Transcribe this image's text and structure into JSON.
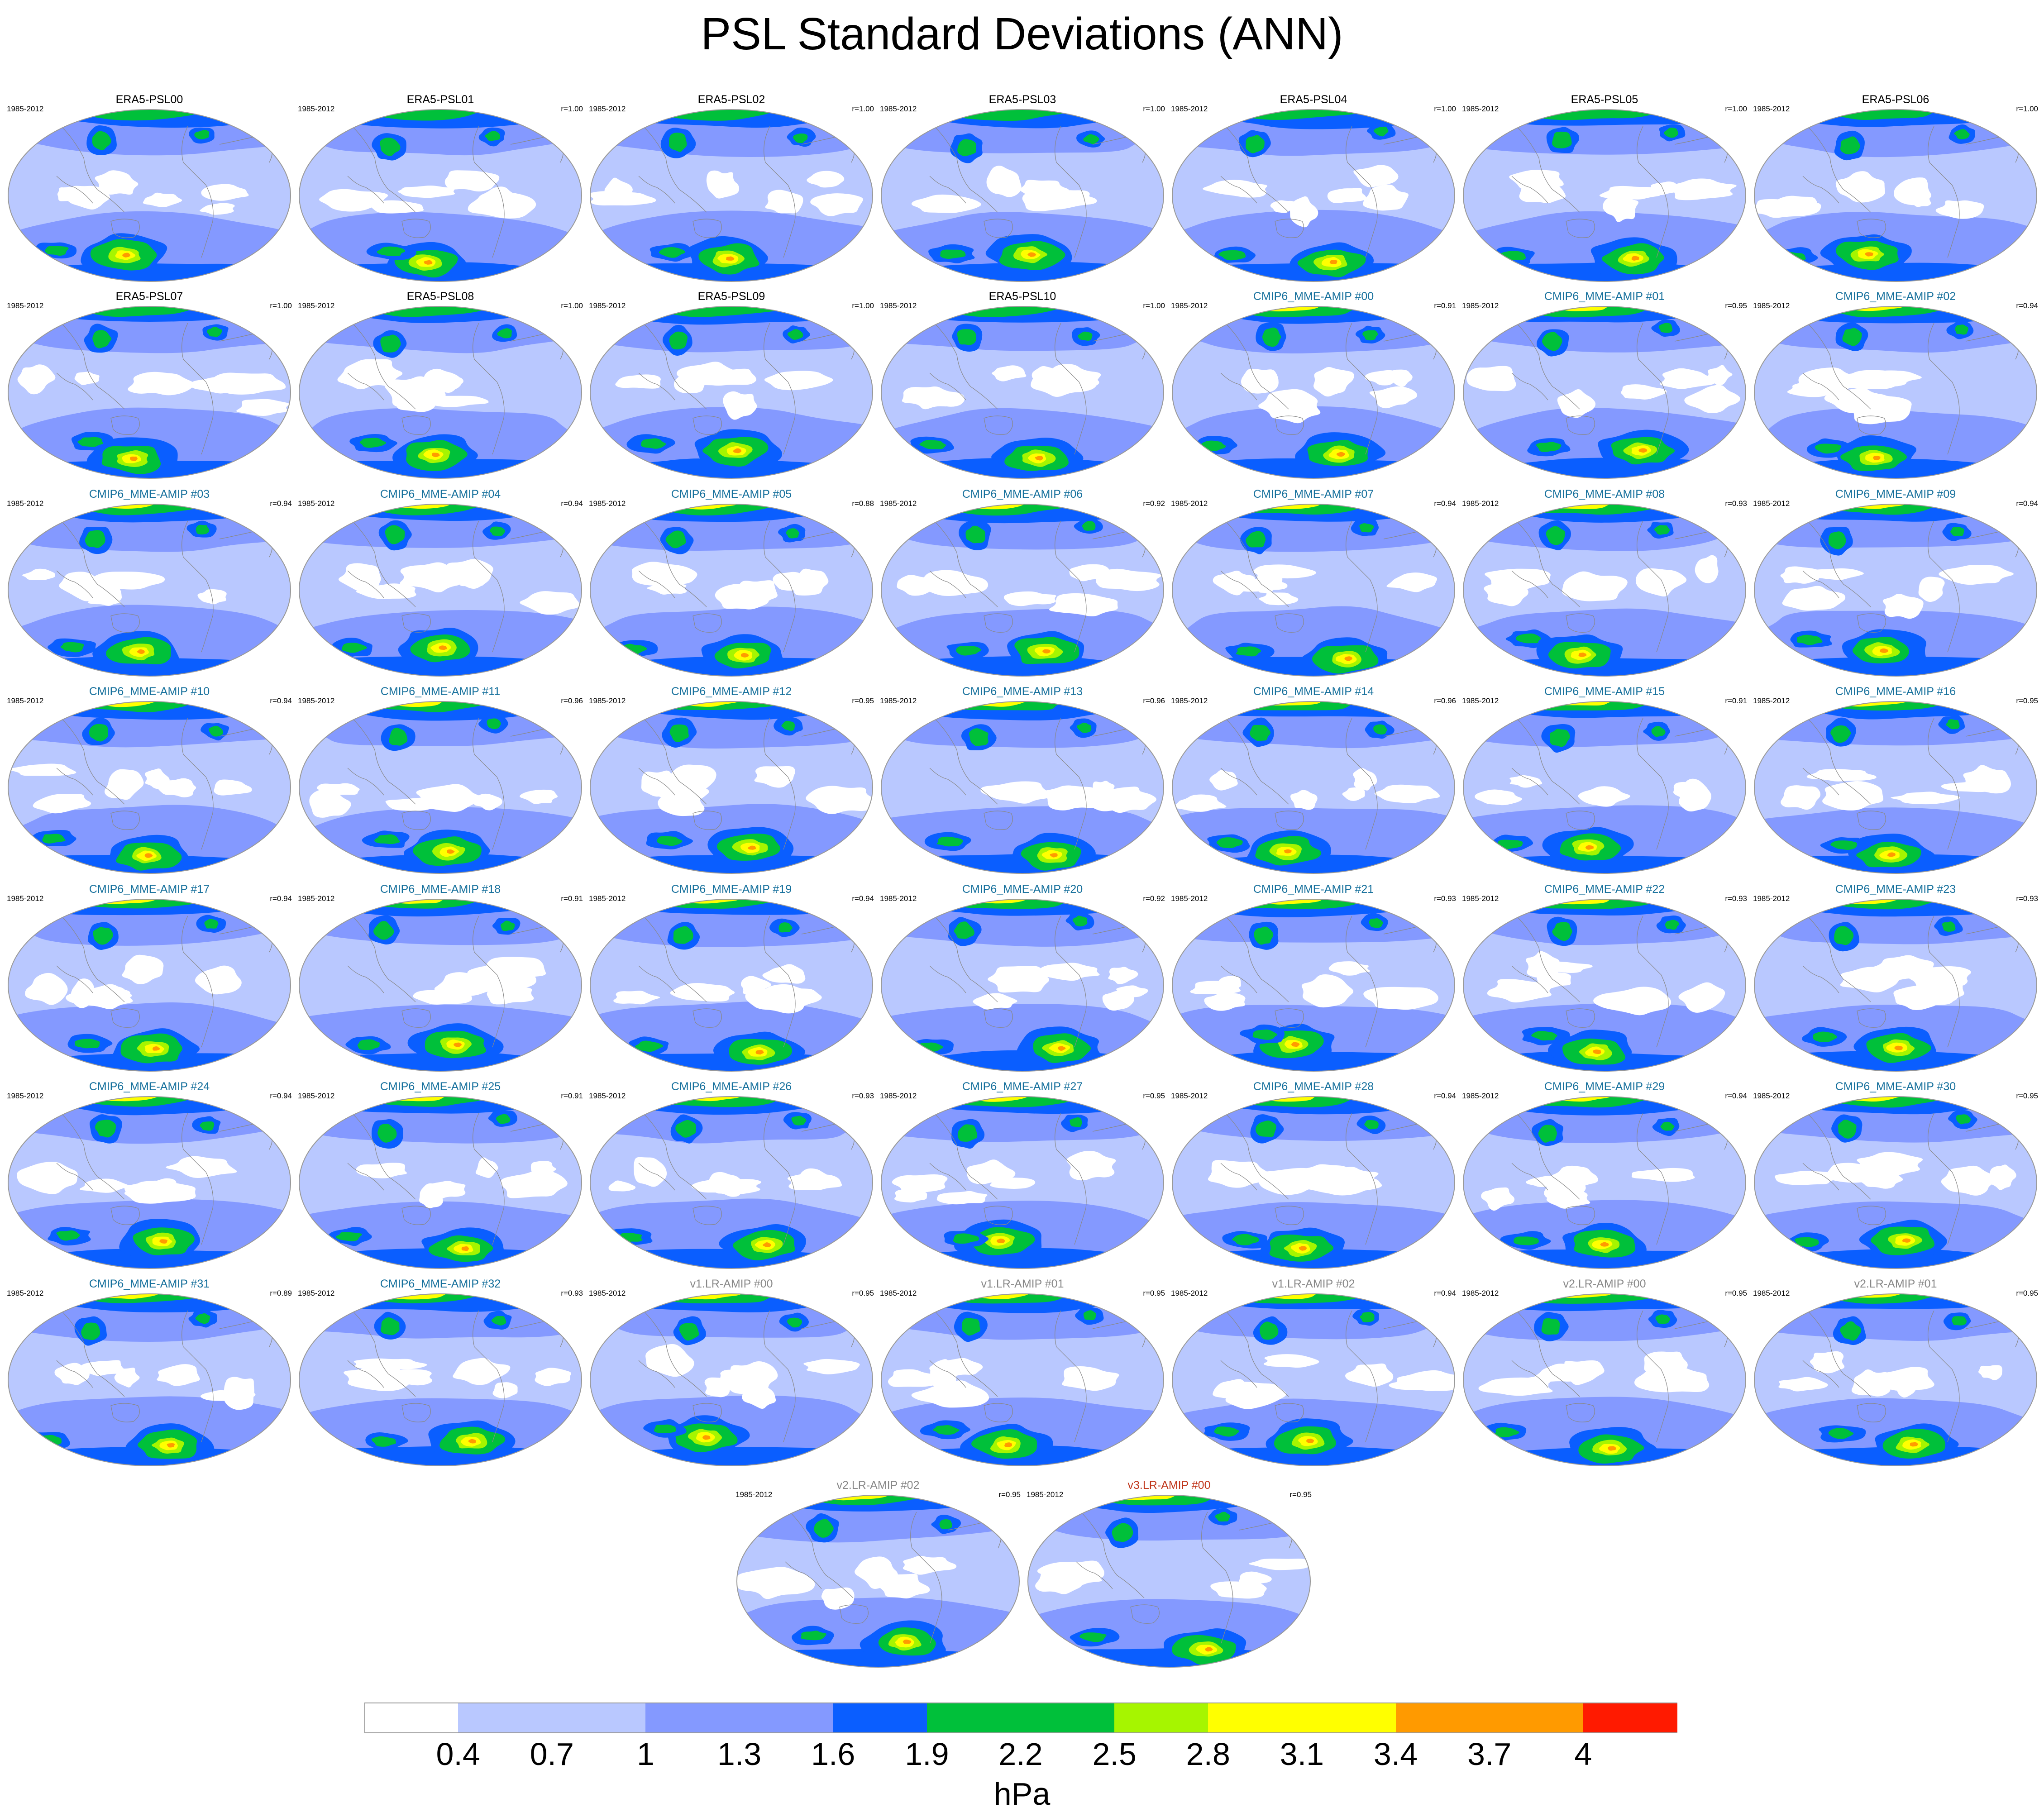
{
  "title": "PSL Standard Deviations (ANN)",
  "period": "1985-2012",
  "colors": {
    "levels": [
      "#ffffff",
      "#b9c8ff",
      "#b9c8ff",
      "#8499ff",
      "#8499ff",
      "#0a5eff",
      "#00c03a",
      "#00c03a",
      "#a6f500",
      "#ffff00",
      "#ffff00",
      "#ff9a00",
      "#ff1a00"
    ],
    "coast": "#888888",
    "outline": "#999999",
    "title_obs": "#000000",
    "title_cmip": "#16709c",
    "title_e3sm": "#888888",
    "title_v3": "#c0361b"
  },
  "panels": [
    {
      "name": "ERA5-PSL00",
      "r": "",
      "group": "obs"
    },
    {
      "name": "ERA5-PSL01",
      "r": "r=1.00",
      "group": "obs"
    },
    {
      "name": "ERA5-PSL02",
      "r": "r=1.00",
      "group": "obs"
    },
    {
      "name": "ERA5-PSL03",
      "r": "r=1.00",
      "group": "obs"
    },
    {
      "name": "ERA5-PSL04",
      "r": "r=1.00",
      "group": "obs"
    },
    {
      "name": "ERA5-PSL05",
      "r": "r=1.00",
      "group": "obs"
    },
    {
      "name": "ERA5-PSL06",
      "r": "r=1.00",
      "group": "obs"
    },
    {
      "name": "ERA5-PSL07",
      "r": "r=1.00",
      "group": "obs"
    },
    {
      "name": "ERA5-PSL08",
      "r": "r=1.00",
      "group": "obs"
    },
    {
      "name": "ERA5-PSL09",
      "r": "r=1.00",
      "group": "obs"
    },
    {
      "name": "ERA5-PSL10",
      "r": "r=1.00",
      "group": "obs"
    },
    {
      "name": "CMIP6_MME-AMIP  #00",
      "r": "r=0.91",
      "group": "cmip"
    },
    {
      "name": "CMIP6_MME-AMIP  #01",
      "r": "r=0.95",
      "group": "cmip"
    },
    {
      "name": "CMIP6_MME-AMIP  #02",
      "r": "r=0.94",
      "group": "cmip"
    },
    {
      "name": "CMIP6_MME-AMIP  #03",
      "r": "r=0.94",
      "group": "cmip"
    },
    {
      "name": "CMIP6_MME-AMIP  #04",
      "r": "r=0.94",
      "group": "cmip"
    },
    {
      "name": "CMIP6_MME-AMIP  #05",
      "r": "r=0.88",
      "group": "cmip"
    },
    {
      "name": "CMIP6_MME-AMIP  #06",
      "r": "r=0.92",
      "group": "cmip"
    },
    {
      "name": "CMIP6_MME-AMIP  #07",
      "r": "r=0.94",
      "group": "cmip"
    },
    {
      "name": "CMIP6_MME-AMIP  #08",
      "r": "r=0.93",
      "group": "cmip"
    },
    {
      "name": "CMIP6_MME-AMIP  #09",
      "r": "r=0.94",
      "group": "cmip"
    },
    {
      "name": "CMIP6_MME-AMIP  #10",
      "r": "r=0.94",
      "group": "cmip"
    },
    {
      "name": "CMIP6_MME-AMIP  #11",
      "r": "r=0.96",
      "group": "cmip"
    },
    {
      "name": "CMIP6_MME-AMIP  #12",
      "r": "r=0.95",
      "group": "cmip"
    },
    {
      "name": "CMIP6_MME-AMIP  #13",
      "r": "r=0.96",
      "group": "cmip"
    },
    {
      "name": "CMIP6_MME-AMIP  #14",
      "r": "r=0.96",
      "group": "cmip"
    },
    {
      "name": "CMIP6_MME-AMIP  #15",
      "r": "r=0.91",
      "group": "cmip"
    },
    {
      "name": "CMIP6_MME-AMIP  #16",
      "r": "r=0.95",
      "group": "cmip"
    },
    {
      "name": "CMIP6_MME-AMIP  #17",
      "r": "r=0.94",
      "group": "cmip"
    },
    {
      "name": "CMIP6_MME-AMIP  #18",
      "r": "r=0.91",
      "group": "cmip"
    },
    {
      "name": "CMIP6_MME-AMIP  #19",
      "r": "r=0.94",
      "group": "cmip"
    },
    {
      "name": "CMIP6_MME-AMIP  #20",
      "r": "r=0.92",
      "group": "cmip"
    },
    {
      "name": "CMIP6_MME-AMIP  #21",
      "r": "r=0.93",
      "group": "cmip"
    },
    {
      "name": "CMIP6_MME-AMIP  #22",
      "r": "r=0.93",
      "group": "cmip"
    },
    {
      "name": "CMIP6_MME-AMIP  #23",
      "r": "r=0.93",
      "group": "cmip"
    },
    {
      "name": "CMIP6_MME-AMIP  #24",
      "r": "r=0.94",
      "group": "cmip"
    },
    {
      "name": "CMIP6_MME-AMIP  #25",
      "r": "r=0.91",
      "group": "cmip"
    },
    {
      "name": "CMIP6_MME-AMIP  #26",
      "r": "r=0.93",
      "group": "cmip"
    },
    {
      "name": "CMIP6_MME-AMIP  #27",
      "r": "r=0.95",
      "group": "cmip"
    },
    {
      "name": "CMIP6_MME-AMIP  #28",
      "r": "r=0.94",
      "group": "cmip"
    },
    {
      "name": "CMIP6_MME-AMIP  #29",
      "r": "r=0.94",
      "group": "cmip"
    },
    {
      "name": "CMIP6_MME-AMIP  #30",
      "r": "r=0.95",
      "group": "cmip"
    },
    {
      "name": "CMIP6_MME-AMIP  #31",
      "r": "r=0.89",
      "group": "cmip"
    },
    {
      "name": "CMIP6_MME-AMIP  #32",
      "r": "r=0.93",
      "group": "cmip"
    },
    {
      "name": "v1.LR-AMIP  #00",
      "r": "r=0.95",
      "group": "e3sm"
    },
    {
      "name": "v1.LR-AMIP  #01",
      "r": "r=0.95",
      "group": "e3sm"
    },
    {
      "name": "v1.LR-AMIP  #02",
      "r": "r=0.94",
      "group": "e3sm"
    },
    {
      "name": "v2.LR-AMIP  #00",
      "r": "r=0.95",
      "group": "e3sm"
    },
    {
      "name": "v2.LR-AMIP  #01",
      "r": "r=0.95",
      "group": "e3sm"
    },
    {
      "name": "v2.LR-AMIP  #02",
      "r": "r=0.95",
      "group": "e3sm"
    },
    {
      "name": "v3.LR-AMIP  #00",
      "r": "r=0.95",
      "group": "v3"
    }
  ],
  "colorbar": {
    "labels": [
      "0.4",
      "0.7",
      "1",
      "1.3",
      "1.6",
      "1.9",
      "2.2",
      "2.5",
      "2.8",
      "3.1",
      "3.4",
      "3.7",
      "4"
    ],
    "units": "hPa"
  },
  "chart_data": {
    "type": "heatmap",
    "title": "PSL Standard Deviations (ANN)",
    "levels": [
      0.4,
      0.7,
      1,
      1.3,
      1.6,
      1.9,
      2.2,
      2.5,
      2.8,
      3.1,
      3.4,
      3.7,
      4
    ],
    "units": "hPa",
    "period": "1985-2012",
    "panel_count": 51,
    "r_values": [
      "",
      "1.00",
      "1.00",
      "1.00",
      "1.00",
      "1.00",
      "1.00",
      "1.00",
      "1.00",
      "1.00",
      "1.00",
      "0.91",
      "0.95",
      "0.94",
      "0.94",
      "0.94",
      "0.88",
      "0.92",
      "0.94",
      "0.93",
      "0.94",
      "0.94",
      "0.96",
      "0.95",
      "0.96",
      "0.96",
      "0.91",
      "0.95",
      "0.94",
      "0.91",
      "0.94",
      "0.92",
      "0.93",
      "0.93",
      "0.93",
      "0.94",
      "0.91",
      "0.93",
      "0.95",
      "0.94",
      "0.94",
      "0.95",
      "0.89",
      "0.93",
      "0.95",
      "0.95",
      "0.94",
      "0.95",
      "0.95",
      "0.95",
      "0.95"
    ]
  }
}
